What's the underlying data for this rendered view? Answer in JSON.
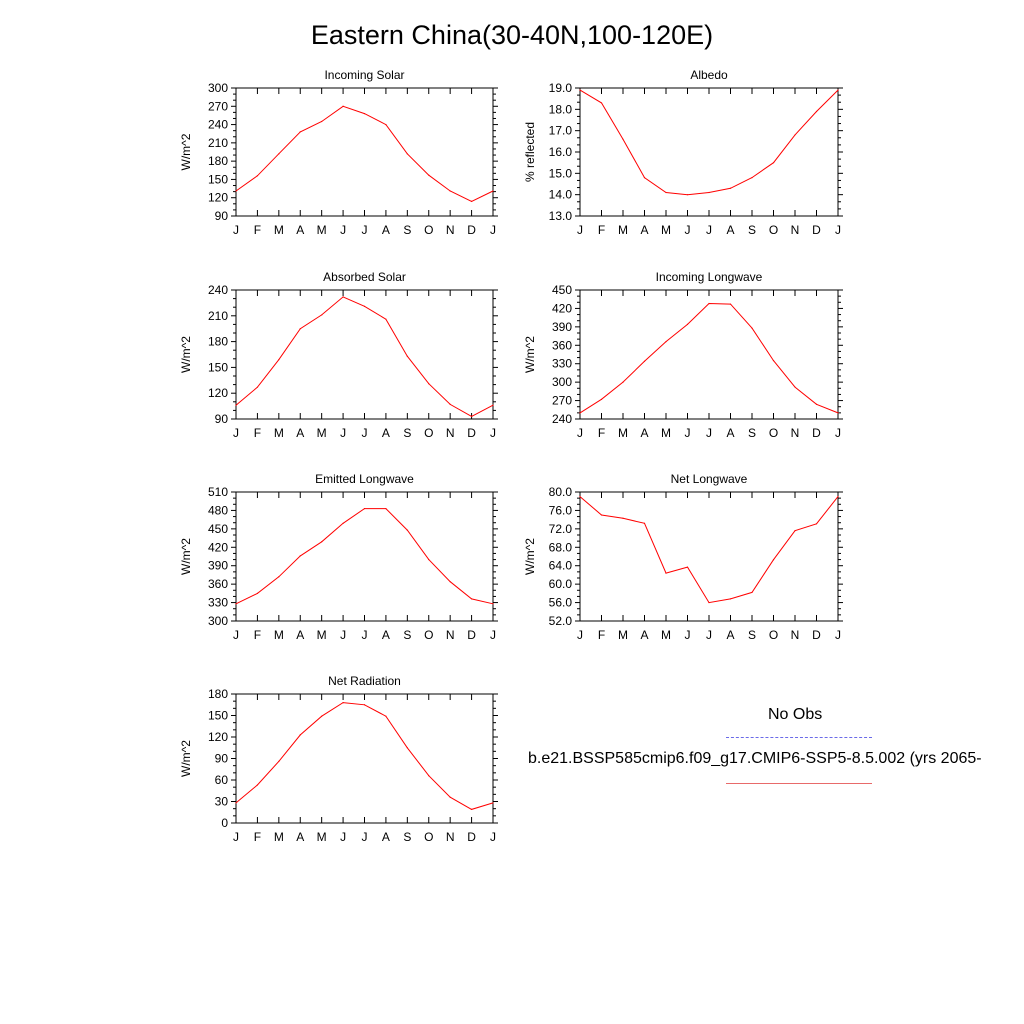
{
  "title": "Eastern China(30-40N,100-120E)",
  "legend": {
    "obs_label": "No Obs",
    "model_label": "b.e21.BSSP585cmip6.f09_g17.CMIP6-SSP5-8.5.002 (yrs 2065-",
    "obs_color": "#6a6ae8",
    "model_color": "#e86a6a"
  },
  "chart_data": [
    {
      "type": "line",
      "title": "Incoming Solar",
      "ylabel": "W/m^2",
      "categories": [
        "J",
        "F",
        "M",
        "A",
        "M",
        "J",
        "J",
        "A",
        "S",
        "O",
        "N",
        "D",
        "J"
      ],
      "yticks": [
        "90",
        "120",
        "150",
        "180",
        "210",
        "240",
        "270",
        "300"
      ],
      "ylim": [
        90,
        300
      ],
      "series": [
        {
          "values": [
            131,
            156,
            192,
            228,
            245,
            270,
            258,
            240,
            192,
            157,
            131,
            114,
            131
          ],
          "color": "#ff0000"
        }
      ]
    },
    {
      "type": "line",
      "title": "Albedo",
      "ylabel": "% reflected",
      "categories": [
        "J",
        "F",
        "M",
        "A",
        "M",
        "J",
        "J",
        "A",
        "S",
        "O",
        "N",
        "D",
        "J"
      ],
      "yticks": [
        "13.0",
        "14.0",
        "15.0",
        "16.0",
        "17.0",
        "18.0",
        "19.0"
      ],
      "ylim": [
        13,
        19
      ],
      "series": [
        {
          "values": [
            18.9,
            18.3,
            16.6,
            14.8,
            14.1,
            14.0,
            14.1,
            14.3,
            14.8,
            15.5,
            16.8,
            17.9,
            18.9
          ],
          "color": "#ff0000"
        }
      ]
    },
    {
      "type": "line",
      "title": "Absorbed Solar",
      "ylabel": "W/m^2",
      "categories": [
        "J",
        "F",
        "M",
        "A",
        "M",
        "J",
        "J",
        "A",
        "S",
        "O",
        "N",
        "D",
        "J"
      ],
      "yticks": [
        "90",
        "120",
        "150",
        "180",
        "210",
        "240"
      ],
      "ylim": [
        90,
        240
      ],
      "series": [
        {
          "values": [
            106,
            127,
            159,
            195,
            211,
            232,
            221,
            206,
            163,
            131,
            107,
            93,
            106
          ],
          "color": "#ff0000"
        }
      ]
    },
    {
      "type": "line",
      "title": "Incoming Longwave",
      "ylabel": "W/m^2",
      "categories": [
        "J",
        "F",
        "M",
        "A",
        "M",
        "J",
        "J",
        "A",
        "S",
        "O",
        "N",
        "D",
        "J"
      ],
      "yticks": [
        "240",
        "270",
        "300",
        "330",
        "360",
        "390",
        "420",
        "450"
      ],
      "ylim": [
        240,
        450
      ],
      "series": [
        {
          "values": [
            250,
            272,
            300,
            334,
            366,
            394,
            428,
            427,
            388,
            335,
            292,
            264,
            250
          ],
          "color": "#ff0000"
        }
      ]
    },
    {
      "type": "line",
      "title": "Emitted Longwave",
      "ylabel": "W/m^2",
      "categories": [
        "J",
        "F",
        "M",
        "A",
        "M",
        "J",
        "J",
        "A",
        "S",
        "O",
        "N",
        "D",
        "J"
      ],
      "yticks": [
        "300",
        "330",
        "360",
        "390",
        "420",
        "450",
        "480",
        "510"
      ],
      "ylim": [
        300,
        510
      ],
      "series": [
        {
          "values": [
            328,
            345,
            372,
            406,
            429,
            459,
            483,
            483,
            448,
            400,
            364,
            336,
            328
          ],
          "color": "#ff0000"
        }
      ]
    },
    {
      "type": "line",
      "title": "Net Longwave",
      "ylabel": "W/m^2",
      "categories": [
        "J",
        "F",
        "M",
        "A",
        "M",
        "J",
        "J",
        "A",
        "S",
        "O",
        "N",
        "D",
        "J"
      ],
      "yticks": [
        "52.0",
        "56.0",
        "60.0",
        "64.0",
        "68.0",
        "72.0",
        "76.0",
        "80.0"
      ],
      "ylim": [
        52,
        80
      ],
      "series": [
        {
          "values": [
            79.0,
            75.0,
            74.3,
            73.2,
            62.4,
            63.7,
            56.0,
            56.8,
            58.2,
            65.3,
            71.6,
            73.1,
            79.0
          ],
          "color": "#ff0000"
        }
      ]
    },
    {
      "type": "line",
      "title": "Net Radiation",
      "ylabel": "W/m^2",
      "categories": [
        "J",
        "F",
        "M",
        "A",
        "M",
        "J",
        "J",
        "A",
        "S",
        "O",
        "N",
        "D",
        "J"
      ],
      "yticks": [
        "0",
        "30",
        "60",
        "90",
        "120",
        "150",
        "180"
      ],
      "ylim": [
        0,
        180
      ],
      "series": [
        {
          "values": [
            28,
            53,
            86,
            123,
            149,
            168,
            165,
            149,
            105,
            66,
            36,
            19,
            28
          ],
          "color": "#ff0000"
        }
      ]
    }
  ]
}
